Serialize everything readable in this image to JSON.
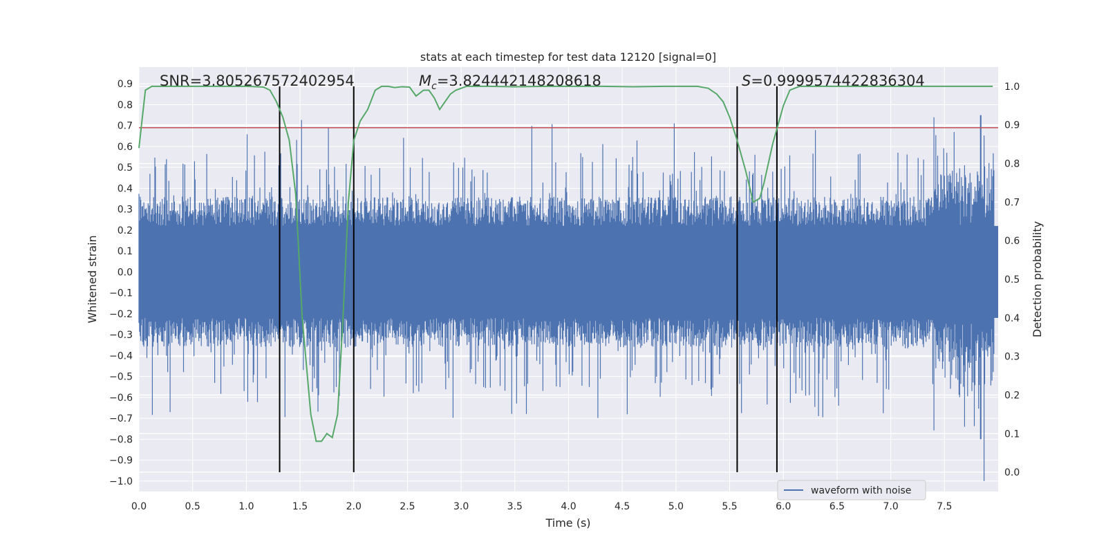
{
  "chart_data": {
    "type": "line",
    "title": "stats at each timestep for test data 12120 [signal=0]",
    "xlabel": "Time (s)",
    "ylabel": "Whitened strain",
    "ylabel_right": "Detection probability",
    "xlim": [
      0.0,
      8.0
    ],
    "ylim": [
      -1.05,
      0.98
    ],
    "ylim_right": [
      -0.05,
      1.05
    ],
    "x_ticks": [
      "0.0",
      "0.5",
      "1.0",
      "1.5",
      "2.0",
      "2.5",
      "3.0",
      "3.5",
      "4.0",
      "4.5",
      "5.0",
      "5.5",
      "6.0",
      "6.5",
      "7.0",
      "7.5"
    ],
    "y_ticks": [
      "0.9",
      "0.8",
      "0.7",
      "0.6",
      "0.5",
      "0.4",
      "0.3",
      "0.2",
      "0.1",
      "0.0",
      "−0.1",
      "−0.2",
      "−0.3",
      "−0.4",
      "−0.5",
      "−0.6",
      "−0.7",
      "−0.8",
      "−0.9",
      "−1.0"
    ],
    "y_ticks_right": [
      "1.0",
      "0.9",
      "0.8",
      "0.7",
      "0.6",
      "0.5",
      "0.4",
      "0.3",
      "0.2",
      "0.1",
      "0.0"
    ],
    "threshold": 0.69,
    "vertical_markers": [
      1.31,
      2.0,
      5.57,
      5.94
    ],
    "annotations": {
      "snr": "SNR=3.805267572402954",
      "mc_symbol": "M",
      "mc_sub": "c",
      "mc_value": "=3.824442148208618",
      "s_symbol": "S",
      "s_value": "=0.9999574422836304"
    },
    "legend": {
      "label": "waveform with noise",
      "placement": "lower-center-right"
    },
    "series": [
      {
        "name": "waveform with noise",
        "color": "#4c72b0",
        "description": "whitened strain noise, roughly ±0.3 core with spikes to ±0.75, one spike near t=7.87 down to -1.0"
      },
      {
        "name": "detection probability",
        "axis": "right",
        "color": "#55a868",
        "x": [
          0.0,
          0.06,
          0.12,
          0.2,
          0.3,
          0.4,
          0.5,
          0.6,
          0.7,
          0.8,
          0.9,
          1.0,
          1.1,
          1.16,
          1.22,
          1.28,
          1.34,
          1.4,
          1.46,
          1.52,
          1.6,
          1.65,
          1.7,
          1.75,
          1.8,
          1.85,
          1.9,
          1.95,
          2.0,
          2.06,
          2.13,
          2.2,
          2.26,
          2.32,
          2.38,
          2.45,
          2.52,
          2.58,
          2.65,
          2.7,
          2.75,
          2.8,
          2.85,
          2.9,
          2.95,
          3.05,
          3.15,
          3.25,
          3.5,
          3.8,
          4.0,
          4.3,
          4.6,
          4.9,
          5.2,
          5.3,
          5.38,
          5.44,
          5.5,
          5.57,
          5.65,
          5.72,
          5.78,
          5.82,
          5.9,
          6.0,
          6.06,
          6.15,
          6.25,
          6.5,
          7.0,
          7.5,
          7.95
        ],
        "values": [
          0.84,
          0.99,
          1.0,
          1.0,
          1.0,
          1.0,
          1.0,
          1.0,
          1.0,
          1.0,
          1.0,
          1.0,
          0.999,
          0.998,
          0.99,
          0.96,
          0.92,
          0.86,
          0.72,
          0.4,
          0.15,
          0.08,
          0.08,
          0.1,
          0.09,
          0.15,
          0.4,
          0.7,
          0.86,
          0.91,
          0.94,
          0.99,
          1.0,
          1.0,
          0.997,
          0.999,
          0.998,
          0.975,
          0.99,
          0.99,
          0.97,
          0.94,
          0.96,
          0.98,
          0.99,
          1.0,
          1.0,
          1.0,
          0.999,
          1.0,
          1.0,
          1.0,
          0.999,
          1.0,
          1.0,
          0.995,
          0.98,
          0.96,
          0.92,
          0.86,
          0.78,
          0.7,
          0.71,
          0.75,
          0.85,
          0.95,
          0.99,
          1.0,
          1.0,
          1.0,
          1.0,
          1.0,
          1.0
        ]
      }
    ],
    "colors": {
      "background": "#eaeaf2",
      "grid": "#ffffff",
      "strain": "#4c72b0",
      "probability": "#55a868",
      "threshold": "#c44e52",
      "marker": "#000000"
    }
  }
}
